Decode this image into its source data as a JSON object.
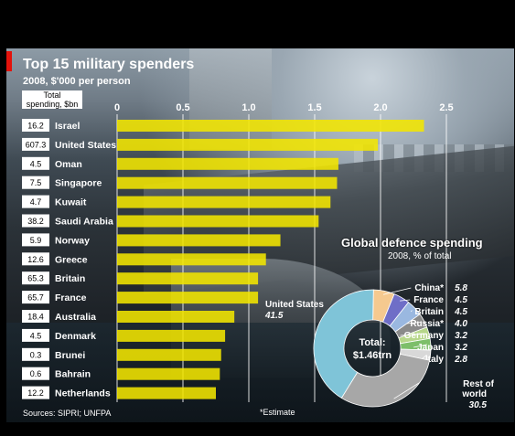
{
  "header": {
    "title": "Top 15 military spenders",
    "subtitle": "2008, $'000 per person",
    "total_label_line1": "Total",
    "total_label_line2": "spending, $bn"
  },
  "footer": {
    "sources": "Sources: SIPRI; UNFPA",
    "estimate_note": "*Estimate"
  },
  "colors": {
    "bar": "#f2e600",
    "accent": "#e3120b",
    "background": "#000000"
  },
  "chart_data": [
    {
      "type": "bar",
      "orientation": "horizontal",
      "title": "Top 15 military spenders",
      "subtitle": "2008, $'000 per person",
      "xlim": [
        0,
        2.5
      ],
      "xticks": [
        "0",
        "0.5",
        "1.0",
        "1.5",
        "2.0",
        "2.5"
      ],
      "grid": true,
      "categories": [
        "Israel",
        "United States",
        "Oman",
        "Singapore",
        "Kuwait",
        "Saudi Arabia",
        "Norway",
        "Greece",
        "Britain",
        "France",
        "Australia",
        "Denmark",
        "Brunei",
        "Bahrain",
        "Netherlands"
      ],
      "values": [
        2.33,
        1.98,
        1.68,
        1.67,
        1.62,
        1.53,
        1.24,
        1.13,
        1.07,
        1.07,
        0.89,
        0.82,
        0.79,
        0.78,
        0.75
      ],
      "total_spending_bn": [
        "16.2",
        "607.3",
        "4.5",
        "7.5",
        "4.7",
        "38.2",
        "5.9",
        "12.6",
        "65.3",
        "65.7",
        "18.4",
        "4.5",
        "0.3",
        "0.6",
        "12.2"
      ]
    },
    {
      "type": "pie",
      "donut": true,
      "title": "Global defence spending",
      "subtitle": "2008, % of total",
      "center_label": "Total:",
      "center_value": "$1.46trn",
      "slices": [
        {
          "label": "China*",
          "value": 5.8,
          "display": "5.8",
          "color": "#f5c98f"
        },
        {
          "label": "France",
          "value": 4.5,
          "display": "4.5",
          "color": "#6f6ec7"
        },
        {
          "label": "Britain",
          "value": 4.5,
          "display": "4.5",
          "color": "#9ab8e0"
        },
        {
          "label": "Russia*",
          "value": 4.0,
          "display": "4.0",
          "color": "#8a8a8a"
        },
        {
          "label": "Germany",
          "value": 3.2,
          "display": "3.2",
          "color": "#b6d68a"
        },
        {
          "label": "Japan",
          "value": 3.2,
          "display": "3.2",
          "color": "#7dbf6a"
        },
        {
          "label": "Italy",
          "value": 2.8,
          "display": "2.8",
          "color": "#d8d8d8"
        },
        {
          "label": "Rest of world",
          "value": 30.5,
          "display": "30.5",
          "color": "#a7a7a7"
        },
        {
          "label": "United States",
          "value": 41.5,
          "display": "41.5",
          "color": "#7fc4d8"
        }
      ]
    }
  ]
}
